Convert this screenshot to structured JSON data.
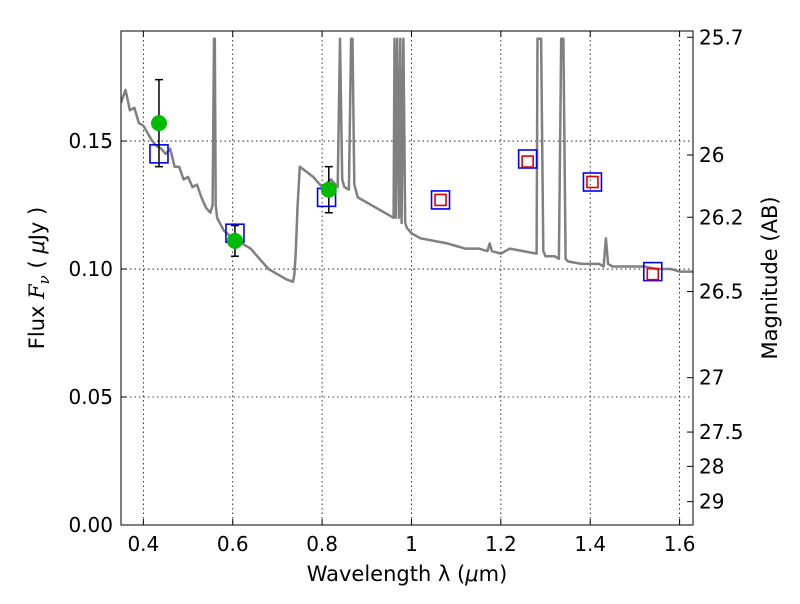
{
  "chart_data": {
    "type": "scatter",
    "title": "",
    "xlabel_prefix": "Wavelength  λ (",
    "xlabel_unit": "μ",
    "xlabel_suffix": "m)",
    "ylabel_prefix": "Flux  ",
    "ylabel_symbol": "F",
    "ylabel_sub": "ν",
    "ylabel_mid": "  ( ",
    "ylabel_unit": "μ",
    "ylabel_suffix": "Jy )",
    "y2label": "Magnitude (AB)",
    "xlim": [
      0.35,
      1.63
    ],
    "ylim": [
      0.0,
      0.193
    ],
    "grid": true,
    "x_ticks": [
      {
        "value": 0.4,
        "label": "0.4"
      },
      {
        "value": 0.6,
        "label": "0.6"
      },
      {
        "value": 0.8,
        "label": "0.8"
      },
      {
        "value": 1.0,
        "label": "1"
      },
      {
        "value": 1.2,
        "label": "1.2"
      },
      {
        "value": 1.4,
        "label": "1.4"
      },
      {
        "value": 1.6,
        "label": "1.6"
      }
    ],
    "y_ticks": [
      {
        "value": 0.0,
        "label": "0.00"
      },
      {
        "value": 0.05,
        "label": "0.05"
      },
      {
        "value": 0.1,
        "label": "0.10"
      },
      {
        "value": 0.15,
        "label": "0.15"
      }
    ],
    "y2_ticks": [
      {
        "mag": 25.7,
        "label": "25.7"
      },
      {
        "mag": 26,
        "label": "26"
      },
      {
        "mag": 26.2,
        "label": "26.2"
      },
      {
        "mag": 26.5,
        "label": "26.5"
      },
      {
        "mag": 27,
        "label": "27"
      },
      {
        "mag": 27.5,
        "label": "27.5"
      },
      {
        "mag": 28,
        "label": "28"
      },
      {
        "mag": 29,
        "label": "29"
      }
    ],
    "series": [
      {
        "name": "model-spectrum",
        "kind": "line",
        "color": "#808080",
        "x": [
          0.35,
          0.36,
          0.37,
          0.38,
          0.39,
          0.4,
          0.41,
          0.42,
          0.43,
          0.44,
          0.45,
          0.46,
          0.47,
          0.48,
          0.49,
          0.5,
          0.51,
          0.52,
          0.53,
          0.54,
          0.55,
          0.555,
          0.558,
          0.56,
          0.562,
          0.565,
          0.58,
          0.6,
          0.62,
          0.64,
          0.66,
          0.68,
          0.7,
          0.72,
          0.735,
          0.738,
          0.741,
          0.745,
          0.75,
          0.78,
          0.8,
          0.82,
          0.835,
          0.84,
          0.845,
          0.85,
          0.86,
          0.865,
          0.868,
          0.872,
          0.88,
          0.9,
          0.92,
          0.94,
          0.96,
          0.962,
          0.965,
          0.968,
          0.972,
          0.975,
          0.978,
          0.982,
          0.986,
          0.99,
          1.0,
          1.02,
          1.05,
          1.08,
          1.1,
          1.12,
          1.15,
          1.17,
          1.175,
          1.18,
          1.2,
          1.22,
          1.25,
          1.28,
          1.282,
          1.285,
          1.29,
          1.295,
          1.3,
          1.32,
          1.33,
          1.335,
          1.34,
          1.345,
          1.35,
          1.38,
          1.4,
          1.42,
          1.43,
          1.435,
          1.44,
          1.45,
          1.48,
          1.5,
          1.52,
          1.55,
          1.58,
          1.6,
          1.62,
          1.63
        ],
        "y": [
          0.165,
          0.17,
          0.162,
          0.163,
          0.157,
          0.156,
          0.153,
          0.15,
          0.148,
          0.147,
          0.145,
          0.147,
          0.14,
          0.14,
          0.135,
          0.136,
          0.132,
          0.133,
          0.128,
          0.124,
          0.122,
          0.125,
          0.19,
          0.19,
          0.125,
          0.12,
          0.115,
          0.112,
          0.11,
          0.108,
          0.104,
          0.1,
          0.098,
          0.096,
          0.095,
          0.098,
          0.106,
          0.124,
          0.14,
          0.136,
          0.132,
          0.135,
          0.132,
          0.19,
          0.135,
          0.132,
          0.131,
          0.19,
          0.19,
          0.133,
          0.128,
          0.126,
          0.124,
          0.122,
          0.12,
          0.19,
          0.12,
          0.19,
          0.12,
          0.19,
          0.118,
          0.19,
          0.118,
          0.116,
          0.114,
          0.112,
          0.111,
          0.11,
          0.109,
          0.108,
          0.108,
          0.107,
          0.11,
          0.107,
          0.106,
          0.108,
          0.107,
          0.106,
          0.19,
          0.19,
          0.19,
          0.107,
          0.105,
          0.105,
          0.104,
          0.19,
          0.19,
          0.104,
          0.103,
          0.102,
          0.102,
          0.102,
          0.101,
          0.112,
          0.102,
          0.101,
          0.101,
          0.101,
          0.101,
          0.1,
          0.1,
          0.099,
          0.099,
          0.099
        ]
      },
      {
        "name": "model-photometry",
        "kind": "open-square",
        "color": "#0000ff",
        "x": [
          0.435,
          0.605,
          0.81,
          1.065,
          1.26,
          1.405,
          1.54
        ],
        "y": [
          0.145,
          0.114,
          0.128,
          0.127,
          0.143,
          0.134,
          0.099
        ]
      },
      {
        "name": "observed-photometry",
        "kind": "open-square",
        "color": "#dd0000",
        "x": [
          1.065,
          1.26,
          1.405,
          1.54
        ],
        "y": [
          0.127,
          0.142,
          0.134,
          0.098
        ]
      },
      {
        "name": "observed-detections",
        "kind": "filled-circle-errorbar",
        "color": "#00bb00",
        "x": [
          0.435,
          0.605,
          0.815
        ],
        "y": [
          0.157,
          0.111,
          0.131
        ],
        "yerr": [
          0.017,
          0.006,
          0.009
        ]
      }
    ]
  }
}
